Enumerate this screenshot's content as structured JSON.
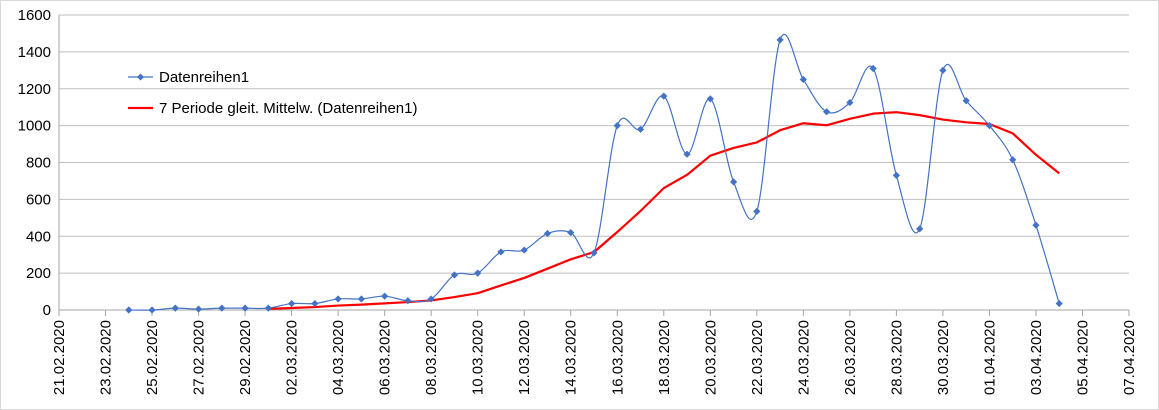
{
  "chart_data": {
    "type": "line",
    "x_dates": [
      "24.02.2020",
      "25.02.2020",
      "26.02.2020",
      "27.02.2020",
      "28.02.2020",
      "29.02.2020",
      "01.03.2020",
      "02.03.2020",
      "03.03.2020",
      "04.03.2020",
      "05.03.2020",
      "06.03.2020",
      "07.03.2020",
      "08.03.2020",
      "09.03.2020",
      "10.03.2020",
      "11.03.2020",
      "12.03.2020",
      "13.03.2020",
      "14.03.2020",
      "15.03.2020",
      "16.03.2020",
      "17.03.2020",
      "18.03.2020",
      "19.03.2020",
      "20.03.2020",
      "21.03.2020",
      "22.03.2020",
      "23.03.2020",
      "24.03.2020",
      "25.03.2020",
      "26.03.2020",
      "27.03.2020",
      "28.03.2020",
      "29.03.2020",
      "30.03.2020",
      "31.03.2020",
      "01.04.2020",
      "02.04.2020",
      "03.04.2020",
      "04.04.2020"
    ],
    "x_tick_labels": [
      "21.02.2020",
      "23.02.2020",
      "25.02.2020",
      "27.02.2020",
      "29.02.2020",
      "02.03.2020",
      "04.03.2020",
      "06.03.2020",
      "08.03.2020",
      "10.03.2020",
      "12.03.2020",
      "14.03.2020",
      "16.03.2020",
      "18.03.2020",
      "20.03.2020",
      "22.03.2020",
      "24.03.2020",
      "26.03.2020",
      "28.03.2020",
      "30.03.2020",
      "01.04.2020",
      "03.04.2020",
      "05.04.2020",
      "07.04.2020"
    ],
    "x_range": [
      "21.02.2020",
      "07.04.2020"
    ],
    "y_tick_labels": [
      "0",
      "200",
      "400",
      "600",
      "800",
      "1000",
      "1200",
      "1400",
      "1600"
    ],
    "ylim": [
      0,
      1600
    ],
    "grid": "horizontal",
    "legend_position": "top-left",
    "series": [
      {
        "name": "Datenreihen1",
        "color": "#4472c4",
        "style": "smoothed line with diamond markers",
        "values": [
          0,
          0,
          10,
          5,
          10,
          10,
          10,
          35,
          35,
          60,
          60,
          75,
          50,
          60,
          190,
          200,
          315,
          325,
          415,
          420,
          310,
          1000,
          980,
          1160,
          845,
          1145,
          695,
          535,
          1465,
          1250,
          1075,
          1125,
          1310,
          730,
          440,
          1300,
          1135,
          1000,
          815,
          460,
          35
        ]
      },
      {
        "name": "7 Periode gleit. Mittelw. (Datenreihen1)",
        "color": "#ff0000",
        "style": "line",
        "values": [
          null,
          null,
          null,
          null,
          null,
          null,
          6,
          11,
          16,
          24,
          29,
          36,
          43,
          52,
          70,
          91,
          133,
          174,
          224,
          275,
          314,
          423,
          537,
          661,
          733,
          837,
          879,
          909,
          975,
          1013,
          1002,
          1037,
          1065,
          1073,
          1057,
          1033,
          1018,
          1009,
          958,
          842,
          741
        ]
      }
    ]
  }
}
